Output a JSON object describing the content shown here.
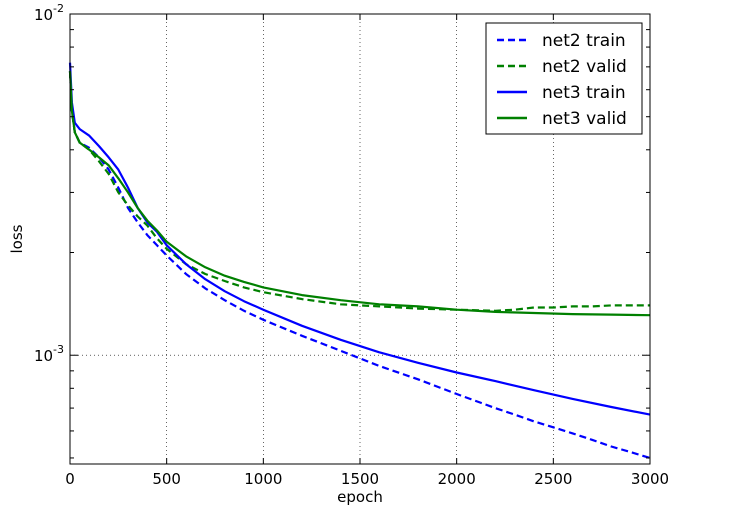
{
  "chart_data": {
    "type": "line",
    "xlabel": "epoch",
    "ylabel": "loss",
    "xlim": [
      0,
      3000
    ],
    "ylim": [
      0.00048,
      0.01
    ],
    "yscale": "log",
    "grid": true,
    "legend_placement": "top-right",
    "x_ticks": [
      {
        "value": 0,
        "label": "0"
      },
      {
        "value": 500,
        "label": "500"
      },
      {
        "value": 1000,
        "label": "1000"
      },
      {
        "value": 1500,
        "label": "1500"
      },
      {
        "value": 2000,
        "label": "2000"
      },
      {
        "value": 2500,
        "label": "2500"
      },
      {
        "value": 3000,
        "label": "3000"
      }
    ],
    "y_ticks": [
      {
        "value": 0.01,
        "base": "10",
        "exponent": "-2"
      },
      {
        "value": 0.001,
        "base": "10",
        "exponent": "-3"
      }
    ],
    "series": [
      {
        "name": "net2 train",
        "color": "#0000ff",
        "dash": "dashed",
        "x": [
          0,
          10,
          25,
          50,
          100,
          150,
          200,
          250,
          300,
          350,
          400,
          450,
          500,
          600,
          700,
          800,
          900,
          1000,
          1200,
          1400,
          1600,
          1800,
          2000,
          2200,
          2300,
          2400,
          2500,
          2600,
          2700,
          2800,
          2900,
          3000
        ],
        "y": [
          0.0068,
          0.0052,
          0.0045,
          0.0042,
          0.00405,
          0.0038,
          0.0035,
          0.0031,
          0.0027,
          0.00245,
          0.00225,
          0.0021,
          0.00196,
          0.00173,
          0.00157,
          0.00145,
          0.00135,
          0.00127,
          0.00114,
          0.00103,
          0.00093,
          0.00085,
          0.00077,
          0.0007,
          0.00067,
          0.00064,
          0.000615,
          0.00059,
          0.000565,
          0.00054,
          0.00052,
          0.0005
        ]
      },
      {
        "name": "net2 valid",
        "color": "#008000",
        "dash": "dashed",
        "x": [
          0,
          10,
          25,
          50,
          100,
          150,
          200,
          250,
          300,
          350,
          400,
          450,
          500,
          600,
          700,
          800,
          900,
          1000,
          1200,
          1400,
          1600,
          1800,
          2000,
          2200,
          2300,
          2400,
          2500,
          2600,
          2700,
          2800,
          2900,
          3000
        ],
        "y": [
          0.0068,
          0.0052,
          0.0045,
          0.0042,
          0.004,
          0.0037,
          0.0034,
          0.003,
          0.00275,
          0.00255,
          0.0024,
          0.0022,
          0.00205,
          0.00185,
          0.00173,
          0.00165,
          0.00158,
          0.00153,
          0.00146,
          0.00141,
          0.00139,
          0.00137,
          0.00136,
          0.00135,
          0.00136,
          0.00138,
          0.00138,
          0.00139,
          0.00139,
          0.0014,
          0.0014,
          0.0014
        ]
      },
      {
        "name": "net3 train",
        "color": "#0000ff",
        "dash": "solid",
        "x": [
          0,
          10,
          25,
          50,
          100,
          150,
          200,
          250,
          300,
          350,
          400,
          450,
          500,
          600,
          700,
          800,
          900,
          1000,
          1200,
          1400,
          1600,
          1800,
          2000,
          2200,
          2400,
          2600,
          2800,
          3000
        ],
        "y": [
          0.0072,
          0.0055,
          0.0048,
          0.0046,
          0.0044,
          0.0041,
          0.0038,
          0.0035,
          0.0031,
          0.0027,
          0.00245,
          0.0023,
          0.0021,
          0.00185,
          0.00167,
          0.00154,
          0.00144,
          0.00136,
          0.00122,
          0.00111,
          0.00102,
          0.00095,
          0.00089,
          0.00084,
          0.00079,
          0.000745,
          0.000705,
          0.00067
        ]
      },
      {
        "name": "net3 valid",
        "color": "#008000",
        "dash": "solid",
        "x": [
          0,
          10,
          25,
          50,
          100,
          150,
          200,
          250,
          300,
          350,
          400,
          450,
          500,
          600,
          700,
          800,
          900,
          1000,
          1200,
          1400,
          1600,
          1800,
          2000,
          2200,
          2400,
          2600,
          2800,
          3000
        ],
        "y": [
          0.0068,
          0.0052,
          0.0045,
          0.0042,
          0.004,
          0.0038,
          0.0036,
          0.0033,
          0.003,
          0.0027,
          0.00248,
          0.00232,
          0.00215,
          0.00195,
          0.00181,
          0.00171,
          0.00164,
          0.00158,
          0.0015,
          0.00145,
          0.00141,
          0.00139,
          0.00136,
          0.00134,
          0.00133,
          0.00132,
          0.001315,
          0.00131
        ]
      }
    ]
  }
}
